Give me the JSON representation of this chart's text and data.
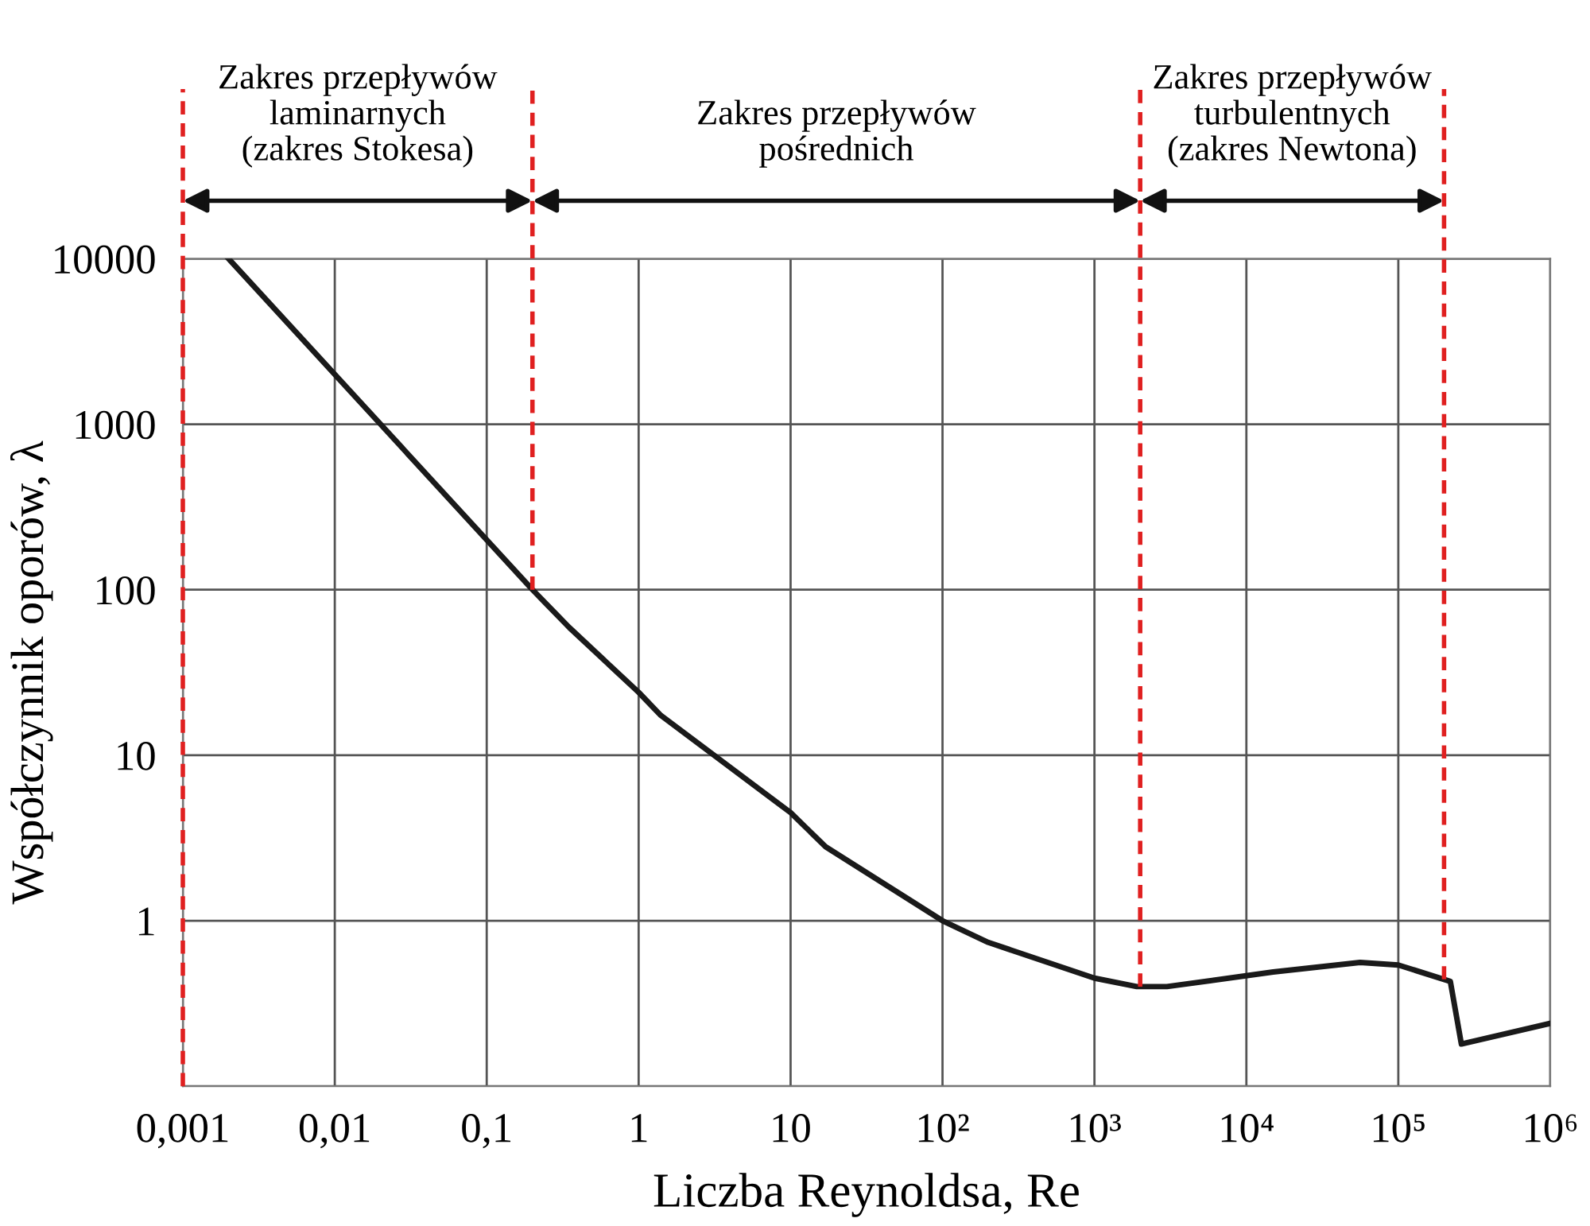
{
  "chart_data": {
    "type": "line",
    "xlabel": "Liczba Reynoldsa, Re",
    "ylabel": "Współczynnik oporów, λ",
    "log": "xy",
    "xlim": [
      0.001,
      1000000
    ],
    "ylim": [
      0.1,
      10000
    ],
    "xticks": [
      {
        "value": 0.001,
        "label": "0,001"
      },
      {
        "value": 0.01,
        "label": "0,01"
      },
      {
        "value": 0.1,
        "label": "0,1"
      },
      1,
      10,
      {
        "value": 100,
        "label": "10²"
      },
      {
        "value": 1000,
        "label": "10³"
      },
      {
        "value": 10000,
        "label": "10⁴"
      },
      {
        "value": 100000,
        "label": "10⁵"
      },
      {
        "value": 1000000,
        "label": "10⁶"
      }
    ],
    "yticks": [
      {
        "value": 0.1,
        "label": null
      },
      1,
      10,
      100,
      1000,
      10000
    ],
    "grid": true,
    "series": [
      {
        "color": "#1a1a1a",
        "x": [
          0.002,
          0.2,
          0.35,
          1,
          1.4,
          10,
          17,
          100,
          200,
          1000,
          1900,
          3000,
          15000,
          56000,
          100000,
          220000,
          260000,
          1000000
        ],
        "values": [
          10000,
          100,
          59,
          24,
          17.4,
          4.5,
          2.8,
          1.0,
          0.74,
          0.45,
          0.4,
          0.4,
          0.49,
          0.56,
          0.54,
          0.43,
          0.18,
          0.24
        ]
      }
    ],
    "ref_lines": [
      {
        "axis": "x",
        "value": 0.001,
        "color": "#e02020",
        "line_style": "dashed"
      },
      {
        "axis": "x",
        "value": 0.2,
        "color": "#e02020",
        "line_style": "dashed"
      },
      {
        "axis": "x",
        "value": 2000,
        "color": "#e02020",
        "line_style": "dashed"
      },
      {
        "axis": "x",
        "value": 200000,
        "color": "#e02020",
        "line_style": "dashed"
      }
    ],
    "annotations": [
      "Zakres przepływów\nlaminarnych\n(zakres Stokesa)",
      "Zakres przepływów\npośrednich",
      "Zakres przepływów\nturbulentnych\n(zakres Newtona)"
    ]
  }
}
